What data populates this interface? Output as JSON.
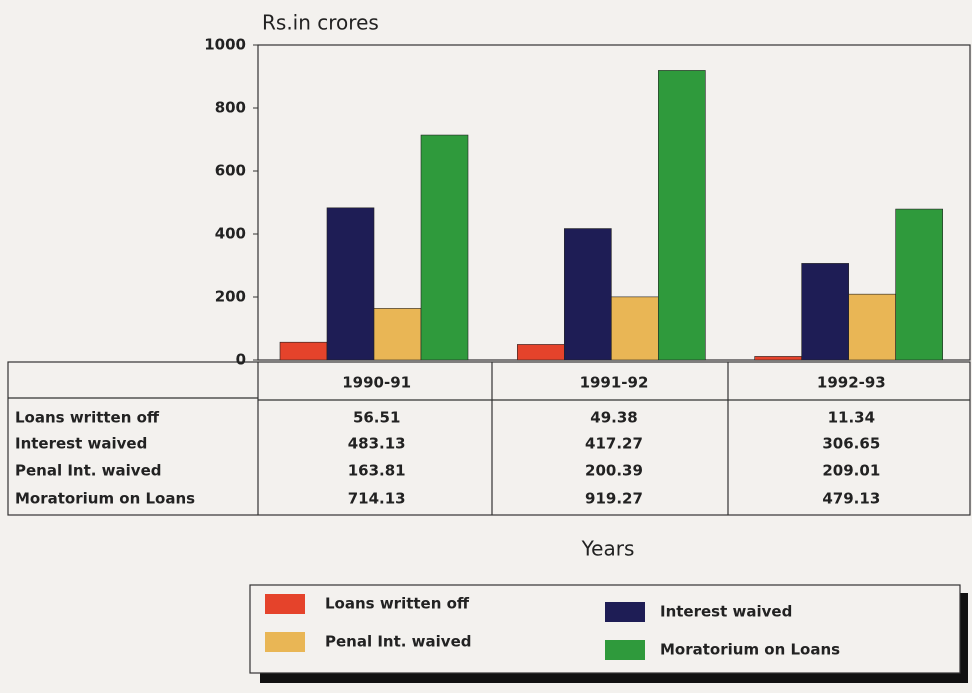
{
  "chart_data": {
    "type": "bar",
    "y_label": "Rs.in crores",
    "x_label": "Years",
    "categories": [
      "1990-91",
      "1991-92",
      "1992-93"
    ],
    "series": [
      {
        "name": "Loans written off",
        "color": "#e5432b",
        "values": [
          56.51,
          49.38,
          11.34
        ]
      },
      {
        "name": "Interest waived",
        "color": "#1e1d55",
        "values": [
          483.13,
          417.27,
          306.65
        ]
      },
      {
        "name": "Penal Int. waived",
        "color": "#e9b655",
        "values": [
          163.81,
          200.39,
          209.01
        ]
      },
      {
        "name": "Moratorium on Loans",
        "color": "#2f9a3c",
        "values": [
          714.13,
          919.27,
          479.13
        ]
      }
    ],
    "ylim": [
      0,
      1000
    ],
    "yticks": [
      0,
      200,
      400,
      600,
      800,
      1000
    ]
  }
}
